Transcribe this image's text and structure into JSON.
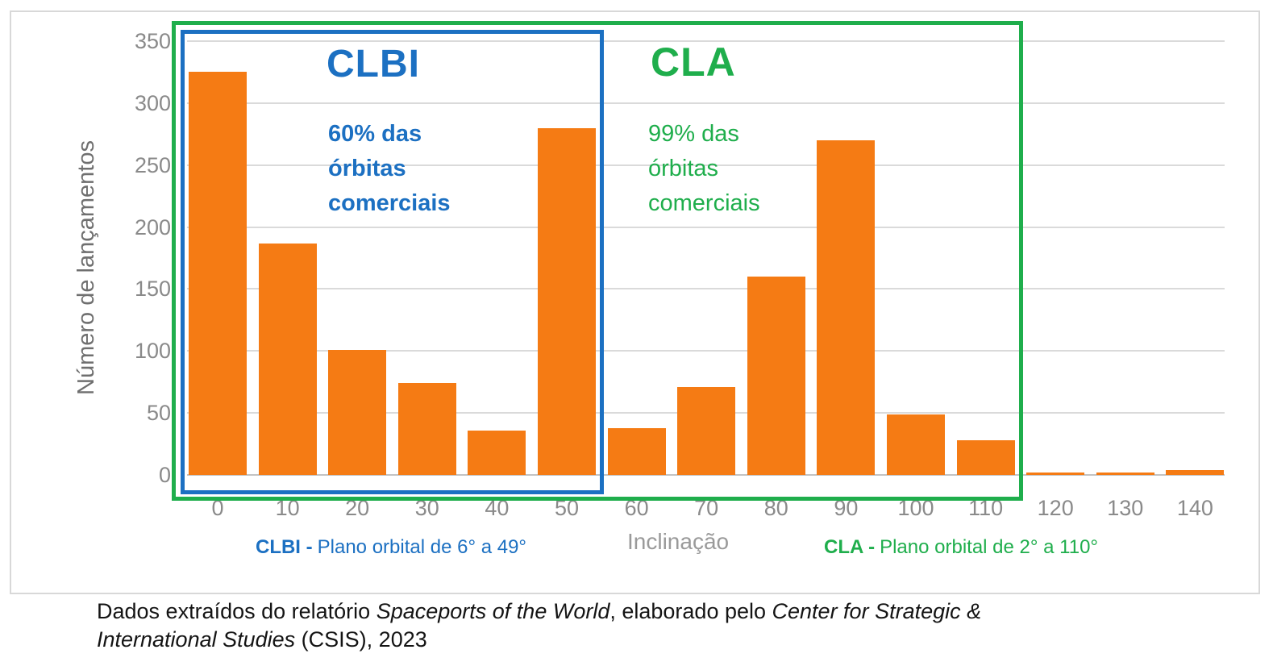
{
  "figure": {
    "y_axis_title": "Número de lançamentos",
    "x_axis_title": "Inclinação",
    "annotations": {
      "clbi": {
        "title": "CLBI",
        "line1": "60% das",
        "line2": "órbitas",
        "line3": "comerciais",
        "color": "#1c70c2"
      },
      "cla": {
        "title": "CLA",
        "line1": "99% das",
        "line2": "órbitas",
        "line3": "comerciais",
        "color": "#1fae4c"
      }
    },
    "footnotes": {
      "clbi_bold": "CLBI -",
      "clbi_text": "Plano orbital de 6° a 49°",
      "cla_bold": "CLA -",
      "cla_text": "Plano orbital de 2° a 110°"
    }
  },
  "chart_data": {
    "type": "bar",
    "title": "",
    "categories": [
      "0",
      "10",
      "20",
      "30",
      "40",
      "50",
      "60",
      "70",
      "80",
      "90",
      "100",
      "110",
      "120",
      "130",
      "140"
    ],
    "values": [
      325,
      187,
      101,
      74,
      36,
      280,
      38,
      71,
      160,
      270,
      49,
      28,
      2,
      2,
      4
    ],
    "xlabel": "Inclinação",
    "ylabel": "Número de lançamentos",
    "ylim": [
      0,
      350
    ],
    "ytick_step": 50,
    "grid": true,
    "legend": "none",
    "bar_color": "#f57b14",
    "highlights": [
      {
        "label": "CLBI",
        "box_color": "#1c70c2",
        "covers_categories": "0 a 50",
        "note": "60% das órbitas comerciais",
        "range_note": "Plano orbital de 6° a 49°"
      },
      {
        "label": "CLA",
        "box_color": "#1fae4c",
        "covers_categories": "0 a 110",
        "note": "99% das órbitas comerciais",
        "range_note": "Plano orbital de 2° a 110°"
      }
    ]
  },
  "caption": {
    "lines": [
      [
        {
          "text": "Dados extraídos do relatório ",
          "italic": false
        },
        {
          "text": "Spaceports of the World",
          "italic": true
        },
        {
          "text": ", elaborado pelo ",
          "italic": false
        },
        {
          "text": "Center for Strategic &",
          "italic": true
        }
      ],
      [
        {
          "text": "International Studies",
          "italic": true
        },
        {
          "text": " (CSIS), 2023",
          "italic": false
        }
      ]
    ]
  }
}
